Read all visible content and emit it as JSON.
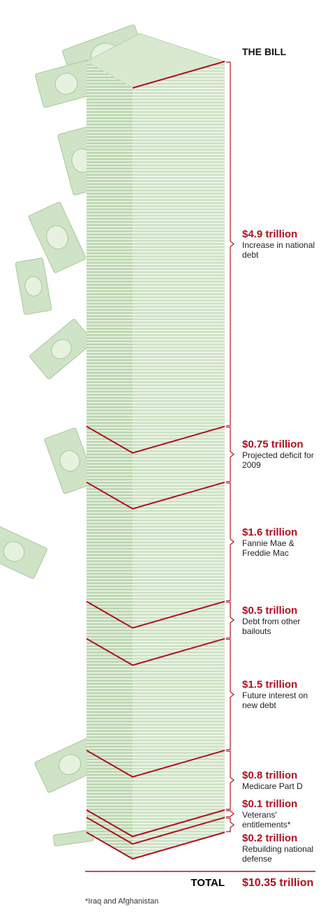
{
  "chart_data": {
    "type": "stack",
    "title": "THE BILL",
    "categories": [
      "Increase in national debt",
      "Projected deficit for 2009",
      "Fannie Mae & Freddie Mac",
      "Debt from other bailouts",
      "Future interest on new debt",
      "Medicare Part D",
      "Veterans' entitlements*",
      "Rebuilding national defense"
    ],
    "values": [
      4.9,
      0.75,
      1.6,
      0.5,
      1.5,
      0.8,
      0.1,
      0.2
    ],
    "value_labels": [
      "$4.9 trillion",
      "$0.75 trillion",
      "$1.6 trillion",
      "$0.5 trillion",
      "$1.5 trillion",
      "$0.8 trillion",
      "$0.1 trillion",
      "$0.2 trillion"
    ],
    "total": {
      "label": "TOTAL",
      "value": 10.35,
      "value_label": "$10.35 trillion"
    },
    "footnote": "*Iraq and Afghanistan",
    "color": "#cfe3c6",
    "line_color": "#b0101e"
  }
}
